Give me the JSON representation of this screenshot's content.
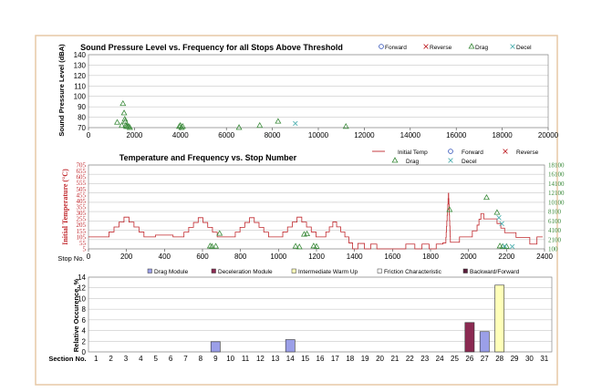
{
  "colors": {
    "frame": "#e7c9a6",
    "red": "#c0282d",
    "green": "#3a8a3a",
    "teal": "#4fb0b0",
    "blue": "#2f4fb7",
    "drag_bar": "#9b9fe8",
    "decel_bar": "#8b2a52",
    "warmup_bar": "#ffffb8",
    "friction_bar": "#ffffff",
    "backfwd_bar": "#5a1c3a"
  },
  "chart_data": [
    {
      "type": "scatter",
      "title": "Sound Pressure Level vs. Frequency for all Stops Above Threshold",
      "ylabel": "Sound Pressure Level (dBA)",
      "xlabel": "",
      "xlim": [
        0,
        20000
      ],
      "ylim": [
        70,
        140
      ],
      "x_ticks": [
        0,
        2000,
        4000,
        6000,
        8000,
        10000,
        12000,
        14000,
        16000,
        18000,
        20000
      ],
      "y_ticks": [
        70,
        80,
        90,
        100,
        110,
        120,
        130,
        140
      ],
      "grid": true,
      "legend_position": "top-right",
      "series": [
        {
          "name": "Forward",
          "marker": "circle",
          "points": []
        },
        {
          "name": "Reverse",
          "marker": "x",
          "points": []
        },
        {
          "name": "Drag",
          "marker": "triangle",
          "points": [
            [
              1250,
              75
            ],
            [
              1450,
              72
            ],
            [
              1500,
              93
            ],
            [
              1550,
              84
            ],
            [
              1580,
              78
            ],
            [
              1600,
              76
            ],
            [
              1620,
              72
            ],
            [
              1650,
              71
            ],
            [
              1700,
              71
            ],
            [
              1750,
              71
            ],
            [
              1800,
              70
            ],
            [
              3950,
              71
            ],
            [
              4000,
              72
            ],
            [
              4050,
              70
            ],
            [
              4100,
              71
            ],
            [
              6550,
              70
            ],
            [
              7450,
              72
            ],
            [
              8250,
              76
            ],
            [
              11200,
              71
            ]
          ]
        },
        {
          "name": "Decel",
          "marker": "x",
          "points": [
            [
              9000,
              74
            ]
          ]
        }
      ]
    },
    {
      "type": "line",
      "title": "Temperature and Frequency vs. Stop Number",
      "xlabel": "Stop No.",
      "ylabel": "Initial Temperature (°C)",
      "xlim": [
        0,
        2400
      ],
      "ylim": [
        5,
        705
      ],
      "y2lim": [
        100,
        18100
      ],
      "x_ticks": [
        0,
        200,
        400,
        600,
        800,
        1000,
        1200,
        1400,
        1600,
        1800,
        2000,
        2200,
        2400
      ],
      "y_ticks": [
        5,
        55,
        105,
        155,
        205,
        255,
        305,
        355,
        405,
        455,
        505,
        555,
        605,
        655,
        705
      ],
      "y2_ticks": [
        100,
        2100,
        4100,
        6100,
        8100,
        10100,
        12100,
        14100,
        16100,
        18100
      ],
      "grid": true,
      "legend_position": "top-right",
      "series": [
        {
          "name": "Initial Temp",
          "axis": "left",
          "marker": "line",
          "points": [
            [
              0,
              105
            ],
            [
              95,
              105
            ],
            [
              200,
              270
            ],
            [
              305,
              105
            ],
            [
              400,
              120
            ],
            [
              490,
              105
            ],
            [
              590,
              265
            ],
            [
              690,
              105
            ],
            [
              760,
              105
            ],
            [
              860,
              265
            ],
            [
              960,
              105
            ],
            [
              1010,
              105
            ],
            [
              1110,
              270
            ],
            [
              1210,
              105
            ],
            [
              1240,
              105
            ],
            [
              1295,
              230
            ],
            [
              1360,
              105
            ],
            [
              1400,
              5
            ],
            [
              1435,
              50
            ],
            [
              1470,
              5
            ],
            [
              1500,
              45
            ],
            [
              1535,
              5
            ],
            [
              1560,
              5
            ],
            [
              1640,
              5
            ],
            [
              1700,
              45
            ],
            [
              1735,
              5
            ],
            [
              1775,
              45
            ],
            [
              1810,
              5
            ],
            [
              1850,
              45
            ],
            [
              1880,
              55
            ],
            [
              1895,
              470
            ],
            [
              1905,
              60
            ],
            [
              2000,
              105
            ],
            [
              2040,
              155
            ],
            [
              2070,
              300
            ],
            [
              2090,
              255
            ],
            [
              2140,
              255
            ],
            [
              2200,
              140
            ],
            [
              2300,
              100
            ],
            [
              2345,
              45
            ],
            [
              2375,
              105
            ],
            [
              2390,
              105
            ]
          ]
        },
        {
          "name": "Forward",
          "axis": "right",
          "marker": "circle",
          "points": []
        },
        {
          "name": "Reverse",
          "axis": "right",
          "marker": "x",
          "points": []
        },
        {
          "name": "Drag",
          "axis": "right",
          "marker": "triangle",
          "points": [
            [
              640,
              700
            ],
            [
              650,
              600
            ],
            [
              670,
              650
            ],
            [
              690,
              3400
            ],
            [
              1090,
              650
            ],
            [
              1110,
              500
            ],
            [
              1135,
              3200
            ],
            [
              1150,
              3300
            ],
            [
              1185,
              700
            ],
            [
              1200,
              600
            ],
            [
              1900,
              8500
            ],
            [
              2095,
              11100
            ],
            [
              2150,
              7900
            ],
            [
              2165,
              700
            ],
            [
              2180,
              600
            ],
            [
              2200,
              600
            ]
          ]
        },
        {
          "name": "Decel",
          "axis": "right",
          "marker": "x",
          "points": [
            [
              2160,
              6800
            ],
            [
              2175,
              5500
            ],
            [
              2190,
              700
            ],
            [
              2230,
              600
            ]
          ]
        }
      ]
    },
    {
      "type": "bar",
      "title": "",
      "xlabel": "Section No.",
      "ylabel": "Relative Occurence, %",
      "ylim": [
        0,
        14
      ],
      "y_ticks": [
        0,
        2,
        4,
        6,
        8,
        10,
        12,
        14
      ],
      "categories": [
        "1",
        "2",
        "3",
        "4",
        "5",
        "6",
        "7",
        "8",
        "9",
        "10",
        "11",
        "12",
        "13",
        "14",
        "15",
        "16",
        "17",
        "18",
        "19",
        "20",
        "21",
        "22",
        "23",
        "24",
        "25",
        "26",
        "27",
        "28",
        "29",
        "30",
        "31"
      ],
      "grid": true,
      "legend_position": "top",
      "legend": [
        "Drag Module",
        "Deceleration Module",
        "Intermediate Warm Up",
        "Friction Characteristic",
        "Backward/Forward"
      ],
      "bars": [
        {
          "section": "9",
          "value": 1.9,
          "series": "Drag Module"
        },
        {
          "section": "14",
          "value": 2.3,
          "series": "Drag Module"
        },
        {
          "section": "26",
          "value": 5.5,
          "series": "Deceleration Module"
        },
        {
          "section": "27",
          "value": 3.8,
          "series": "Drag Module"
        },
        {
          "section": "28",
          "value": 12.5,
          "series": "Intermediate Warm Up"
        }
      ]
    }
  ]
}
